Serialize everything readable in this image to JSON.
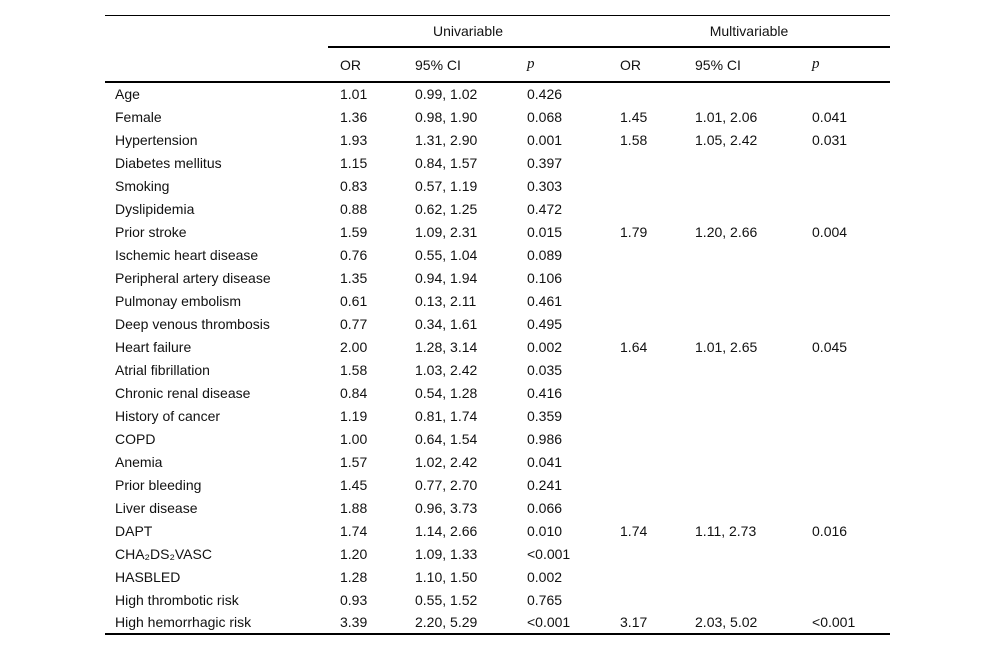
{
  "table": {
    "group_headers": {
      "univariable": "Univariable",
      "multivariable": "Multivariable"
    },
    "column_headers": {
      "or": "OR",
      "ci": "95% CI",
      "p": "p"
    },
    "rows": [
      {
        "label": "Age",
        "uni": {
          "or": "1.01",
          "ci": "0.99, 1.02",
          "p": "0.426"
        },
        "multi": {
          "or": "",
          "ci": "",
          "p": ""
        }
      },
      {
        "label": "Female",
        "uni": {
          "or": "1.36",
          "ci": "0.98, 1.90",
          "p": "0.068"
        },
        "multi": {
          "or": "1.45",
          "ci": "1.01, 2.06",
          "p": "0.041"
        }
      },
      {
        "label": "Hypertension",
        "uni": {
          "or": "1.93",
          "ci": "1.31, 2.90",
          "p": "0.001"
        },
        "multi": {
          "or": "1.58",
          "ci": "1.05, 2.42",
          "p": "0.031"
        }
      },
      {
        "label": "Diabetes mellitus",
        "uni": {
          "or": "1.15",
          "ci": "0.84, 1.57",
          "p": "0.397"
        },
        "multi": {
          "or": "",
          "ci": "",
          "p": ""
        }
      },
      {
        "label": "Smoking",
        "uni": {
          "or": "0.83",
          "ci": "0.57, 1.19",
          "p": "0.303"
        },
        "multi": {
          "or": "",
          "ci": "",
          "p": ""
        }
      },
      {
        "label": "Dyslipidemia",
        "uni": {
          "or": "0.88",
          "ci": "0.62, 1.25",
          "p": "0.472"
        },
        "multi": {
          "or": "",
          "ci": "",
          "p": ""
        }
      },
      {
        "label": "Prior stroke",
        "uni": {
          "or": "1.59",
          "ci": "1.09, 2.31",
          "p": "0.015"
        },
        "multi": {
          "or": "1.79",
          "ci": "1.20, 2.66",
          "p": "0.004"
        }
      },
      {
        "label": "Ischemic heart disease",
        "uni": {
          "or": "0.76",
          "ci": "0.55, 1.04",
          "p": "0.089"
        },
        "multi": {
          "or": "",
          "ci": "",
          "p": ""
        }
      },
      {
        "label": "Peripheral artery disease",
        "uni": {
          "or": "1.35",
          "ci": "0.94, 1.94",
          "p": "0.106"
        },
        "multi": {
          "or": "",
          "ci": "",
          "p": ""
        }
      },
      {
        "label": "Pulmonay embolism",
        "uni": {
          "or": "0.61",
          "ci": "0.13, 2.11",
          "p": "0.461"
        },
        "multi": {
          "or": "",
          "ci": "",
          "p": ""
        }
      },
      {
        "label": "Deep venous thrombosis",
        "uni": {
          "or": "0.77",
          "ci": "0.34, 1.61",
          "p": "0.495"
        },
        "multi": {
          "or": "",
          "ci": "",
          "p": ""
        }
      },
      {
        "label": "Heart failure",
        "uni": {
          "or": "2.00",
          "ci": "1.28, 3.14",
          "p": "0.002"
        },
        "multi": {
          "or": "1.64",
          "ci": "1.01, 2.65",
          "p": "0.045"
        }
      },
      {
        "label": "Atrial fibrillation",
        "uni": {
          "or": "1.58",
          "ci": "1.03, 2.42",
          "p": "0.035"
        },
        "multi": {
          "or": "",
          "ci": "",
          "p": ""
        }
      },
      {
        "label": "Chronic renal disease",
        "uni": {
          "or": "0.84",
          "ci": "0.54, 1.28",
          "p": "0.416"
        },
        "multi": {
          "or": "",
          "ci": "",
          "p": ""
        }
      },
      {
        "label": "History of cancer",
        "uni": {
          "or": "1.19",
          "ci": "0.81, 1.74",
          "p": "0.359"
        },
        "multi": {
          "or": "",
          "ci": "",
          "p": ""
        }
      },
      {
        "label": "COPD",
        "uni": {
          "or": "1.00",
          "ci": "0.64, 1.54",
          "p": "0.986"
        },
        "multi": {
          "or": "",
          "ci": "",
          "p": ""
        }
      },
      {
        "label": "Anemia",
        "uni": {
          "or": "1.57",
          "ci": "1.02, 2.42",
          "p": "0.041"
        },
        "multi": {
          "or": "",
          "ci": "",
          "p": ""
        }
      },
      {
        "label": "Prior bleeding",
        "uni": {
          "or": "1.45",
          "ci": "0.77, 2.70",
          "p": "0.241"
        },
        "multi": {
          "or": "",
          "ci": "",
          "p": ""
        }
      },
      {
        "label": "Liver disease",
        "uni": {
          "or": "1.88",
          "ci": "0.96, 3.73",
          "p": "0.066"
        },
        "multi": {
          "or": "",
          "ci": "",
          "p": ""
        }
      },
      {
        "label": "DAPT",
        "uni": {
          "or": "1.74",
          "ci": "1.14, 2.66",
          "p": "0.010"
        },
        "multi": {
          "or": "1.74",
          "ci": "1.11, 2.73",
          "p": "0.016"
        }
      },
      {
        "label": "CHA₂DS₂VASC",
        "uni": {
          "or": "1.20",
          "ci": "1.09, 1.33",
          "p": "<0.001"
        },
        "multi": {
          "or": "",
          "ci": "",
          "p": ""
        }
      },
      {
        "label": "HASBLED",
        "uni": {
          "or": "1.28",
          "ci": "1.10, 1.50",
          "p": "0.002"
        },
        "multi": {
          "or": "",
          "ci": "",
          "p": ""
        }
      },
      {
        "label": "High thrombotic risk",
        "uni": {
          "or": "0.93",
          "ci": "0.55, 1.52",
          "p": "0.765"
        },
        "multi": {
          "or": "",
          "ci": "",
          "p": ""
        }
      },
      {
        "label": "High hemorrhagic risk",
        "uni": {
          "or": "3.39",
          "ci": "2.20, 5.29",
          "p": "<0.001"
        },
        "multi": {
          "or": "3.17",
          "ci": "2.03, 5.02",
          "p": "<0.001"
        }
      }
    ]
  }
}
